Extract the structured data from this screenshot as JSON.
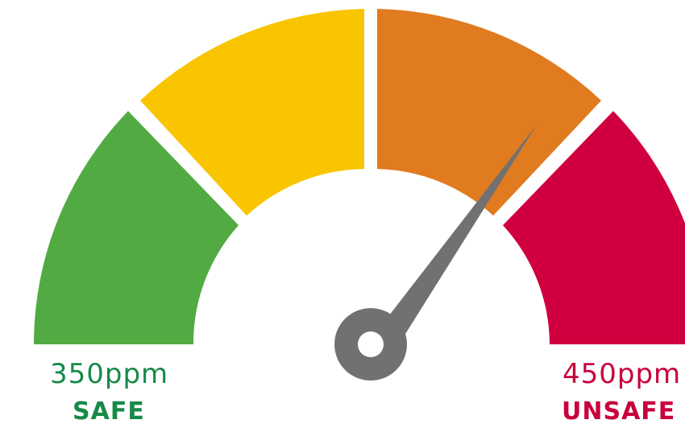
{
  "gauge": {
    "reading_fraction": 0.8,
    "zones": [
      {
        "name": "green",
        "color": "#52AB42"
      },
      {
        "name": "yellow",
        "color": "#F9C400"
      },
      {
        "name": "orange",
        "color": "#E07B20"
      },
      {
        "name": "red",
        "color": "#D00040"
      }
    ],
    "needle_color": "#717171"
  },
  "labels": {
    "min_value": "350ppm",
    "min_status": "SAFE",
    "min_color": "#178A4A",
    "max_value": "450ppm",
    "max_status": "UNSAFE",
    "max_color": "#C8003C"
  }
}
